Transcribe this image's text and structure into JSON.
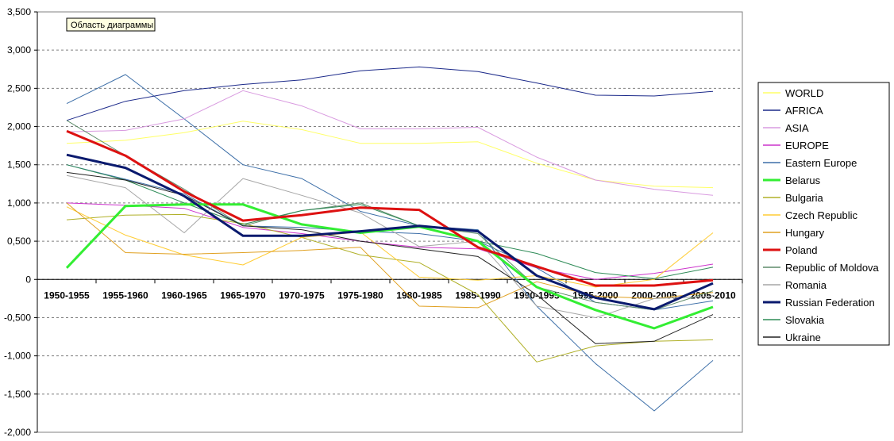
{
  "chart_tip": "Область диаграммы",
  "colors": {
    "WORLD": "#ffff66",
    "AFRICA": "#1c2a8a",
    "ASIA": "#d99be0",
    "EUROPE": "#cc33cc",
    "Eastern Europe": "#3d6fa8",
    "Belarus": "#33ee33",
    "Bulgaria": "#b0b028",
    "Czech Republic": "#ffcc33",
    "Hungary": "#e0a020",
    "Poland": "#dd1111",
    "Republic of Moldova": "#5e8c6a",
    "Romania": "#a6a6a6",
    "Russian Federation": "#0a1a6e",
    "Slovakia": "#2e8b57",
    "Ukraine": "#222222"
  },
  "chart_data": {
    "type": "line",
    "categories": [
      "1950-1955",
      "1955-1960",
      "1960-1965",
      "1965-1970",
      "1970-1975",
      "1975-1980",
      "1980-1985",
      "1985-1990",
      "1990-1995",
      "1995-2000",
      "2000-2005",
      "2005-2010"
    ],
    "ylim": [
      -2,
      3.5
    ],
    "yticks": [
      "3,500",
      "3,000",
      "2,500",
      "2,000",
      "1,500",
      "1,000",
      "0,500",
      "0",
      "-0,500",
      "-1,000",
      "-1,500",
      "-2,000"
    ],
    "grid": true,
    "legend_position": "right",
    "series": [
      {
        "name": "WORLD",
        "values": [
          1.78,
          1.82,
          1.92,
          2.07,
          1.96,
          1.78,
          1.78,
          1.8,
          1.52,
          1.3,
          1.22,
          1.2
        ]
      },
      {
        "name": "AFRICA",
        "values": [
          2.08,
          2.33,
          2.47,
          2.55,
          2.61,
          2.73,
          2.78,
          2.72,
          2.57,
          2.41,
          2.4,
          2.46
        ]
      },
      {
        "name": "ASIA",
        "values": [
          1.93,
          1.95,
          2.1,
          2.47,
          2.27,
          1.97,
          1.97,
          1.99,
          1.6,
          1.3,
          1.18,
          1.1
        ]
      },
      {
        "name": "EUROPE",
        "values": [
          1.0,
          0.97,
          0.93,
          0.68,
          0.6,
          0.5,
          0.42,
          0.4,
          0.15,
          0.0,
          0.08,
          0.2
        ]
      },
      {
        "name": "Eastern Europe",
        "values": [
          1.5,
          1.31,
          1.12,
          0.7,
          0.68,
          0.63,
          0.6,
          0.5,
          0.15,
          -0.3,
          -0.4,
          -0.28
        ]
      },
      {
        "name": "Belarus",
        "values": [
          0.15,
          0.96,
          0.98,
          0.98,
          0.72,
          0.61,
          0.69,
          0.5,
          -0.1,
          -0.4,
          -0.64,
          -0.36
        ]
      },
      {
        "name": "Bulgaria",
        "values": [
          0.78,
          0.84,
          0.85,
          0.73,
          0.55,
          0.32,
          0.22,
          -0.2,
          -1.08,
          -0.87,
          -0.81,
          -0.79
        ]
      },
      {
        "name": "Czech Republic",
        "values": [
          0.95,
          0.58,
          0.32,
          0.19,
          0.55,
          0.62,
          0.03,
          -0.01,
          0.05,
          -0.1,
          0.0,
          0.61
        ]
      },
      {
        "name": "Hungary",
        "values": [
          1.0,
          0.35,
          0.33,
          0.35,
          0.38,
          0.42,
          -0.35,
          -0.37,
          -0.03,
          -0.22,
          -0.25,
          -0.17
        ]
      },
      {
        "name": "Poland",
        "values": [
          1.94,
          1.62,
          1.15,
          0.77,
          0.84,
          0.94,
          0.91,
          0.42,
          0.17,
          -0.08,
          -0.08,
          -0.01
        ]
      },
      {
        "name": "Republic of Moldova",
        "values": [
          2.08,
          1.62,
          1.18,
          0.7,
          0.9,
          1.0,
          0.7,
          0.6,
          -0.1,
          -0.3,
          -0.4,
          -0.15
        ]
      },
      {
        "name": "Romania",
        "values": [
          1.36,
          1.2,
          0.61,
          1.32,
          1.1,
          0.87,
          0.43,
          0.5,
          -0.35,
          -0.5,
          -0.25,
          -0.22
        ]
      },
      {
        "name": "Russian Federation",
        "values": [
          1.63,
          1.46,
          1.09,
          0.57,
          0.57,
          0.63,
          0.7,
          0.63,
          0.05,
          -0.24,
          -0.39,
          -0.05
        ]
      },
      {
        "name": "Slovakia",
        "values": [
          1.5,
          1.3,
          1.0,
          0.72,
          0.9,
          0.98,
          0.7,
          0.5,
          0.34,
          0.09,
          0.01,
          0.16
        ]
      },
      {
        "name": "Ukraine",
        "values": [
          1.4,
          1.3,
          1.1,
          0.7,
          0.65,
          0.5,
          0.4,
          0.3,
          -0.2,
          -0.84,
          -0.81,
          -0.46
        ]
      }
    ],
    "extra_series": [
      {
        "color_ref": "Eastern Europe",
        "values": [
          2.3,
          2.68,
          2.1,
          1.5,
          1.32,
          0.89,
          0.7,
          0.65,
          -0.35,
          -1.1,
          -1.72,
          -1.06
        ]
      }
    ]
  }
}
